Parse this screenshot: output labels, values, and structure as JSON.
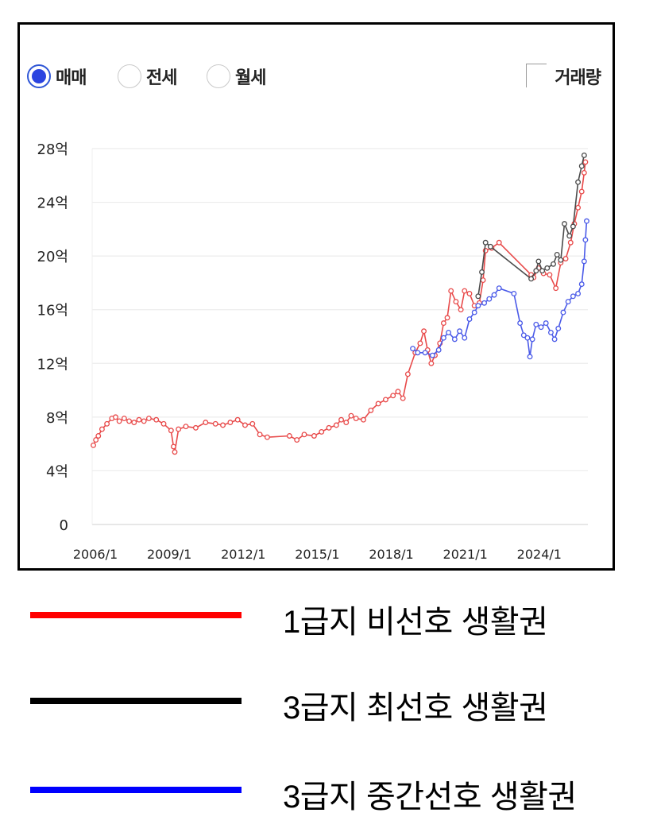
{
  "controls": {
    "radios": [
      {
        "label": "매매",
        "selected": true
      },
      {
        "label": "전세",
        "selected": false
      },
      {
        "label": "월세",
        "selected": false
      }
    ],
    "volume_checkbox": {
      "label": "거래량",
      "checked": false
    }
  },
  "legend": [
    {
      "label": "1급지 비선호 생활권",
      "color": "#ff0000"
    },
    {
      "label": "3급지 최선호 생활권",
      "color": "#000000"
    },
    {
      "label": "3급지 중간선호 생활권",
      "color": "#0000ff"
    }
  ],
  "chart_data": {
    "type": "line",
    "x_unit": "year",
    "xlim": [
      2006.0,
      2026.1
    ],
    "ylim": [
      0,
      28
    ],
    "y_ticks": [
      0,
      4,
      8,
      12,
      16,
      20,
      24,
      28
    ],
    "y_tick_labels": [
      "0",
      "4억",
      "8억",
      "12억",
      "16억",
      "20억",
      "24억",
      "28억"
    ],
    "x_ticks": [
      2006,
      2009,
      2012,
      2015,
      2018,
      2021,
      2024
    ],
    "x_tick_labels": [
      "2006/1",
      "2009/1",
      "2012/1",
      "2015/1",
      "2018/1",
      "2021/1",
      "2024/1"
    ],
    "grid": "horizontal",
    "series": [
      {
        "color": "#e84a4a",
        "points": [
          [
            2006.05,
            5.9
          ],
          [
            2006.15,
            6.3
          ],
          [
            2006.25,
            6.6
          ],
          [
            2006.4,
            7.1
          ],
          [
            2006.6,
            7.5
          ],
          [
            2006.8,
            7.9
          ],
          [
            2006.95,
            8.0
          ],
          [
            2007.1,
            7.7
          ],
          [
            2007.3,
            7.9
          ],
          [
            2007.5,
            7.7
          ],
          [
            2007.7,
            7.6
          ],
          [
            2007.9,
            7.8
          ],
          [
            2008.1,
            7.7
          ],
          [
            2008.3,
            7.9
          ],
          [
            2008.6,
            7.8
          ],
          [
            2008.9,
            7.5
          ],
          [
            2009.2,
            7.0
          ],
          [
            2009.3,
            5.8
          ],
          [
            2009.35,
            5.4
          ],
          [
            2009.5,
            7.1
          ],
          [
            2009.8,
            7.3
          ],
          [
            2010.2,
            7.2
          ],
          [
            2010.6,
            7.6
          ],
          [
            2011.0,
            7.5
          ],
          [
            2011.3,
            7.4
          ],
          [
            2011.6,
            7.6
          ],
          [
            2011.9,
            7.8
          ],
          [
            2012.2,
            7.4
          ],
          [
            2012.5,
            7.5
          ],
          [
            2012.8,
            6.7
          ],
          [
            2013.1,
            6.5
          ],
          [
            2014.0,
            6.6
          ],
          [
            2014.3,
            6.3
          ],
          [
            2014.6,
            6.7
          ],
          [
            2015.0,
            6.6
          ],
          [
            2015.3,
            6.9
          ],
          [
            2015.6,
            7.2
          ],
          [
            2015.9,
            7.4
          ],
          [
            2016.1,
            7.8
          ],
          [
            2016.3,
            7.6
          ],
          [
            2016.5,
            8.1
          ],
          [
            2016.7,
            7.9
          ],
          [
            2017.0,
            7.8
          ],
          [
            2017.3,
            8.5
          ],
          [
            2017.6,
            9.0
          ],
          [
            2017.9,
            9.3
          ],
          [
            2018.2,
            9.6
          ],
          [
            2018.4,
            9.9
          ],
          [
            2018.6,
            9.4
          ],
          [
            2018.8,
            11.2
          ],
          [
            2019.1,
            12.8
          ],
          [
            2019.3,
            13.5
          ],
          [
            2019.45,
            14.4
          ],
          [
            2019.6,
            13.0
          ],
          [
            2019.75,
            12.0
          ],
          [
            2019.9,
            12.6
          ],
          [
            2020.1,
            13.5
          ],
          [
            2020.25,
            15.0
          ],
          [
            2020.4,
            15.4
          ],
          [
            2020.55,
            17.4
          ],
          [
            2020.75,
            16.6
          ],
          [
            2020.95,
            16.0
          ],
          [
            2021.1,
            17.4
          ],
          [
            2021.3,
            17.2
          ],
          [
            2021.5,
            16.3
          ],
          [
            2021.7,
            16.5
          ],
          [
            2021.85,
            18.2
          ],
          [
            2021.95,
            20.4
          ],
          [
            2022.2,
            20.6
          ],
          [
            2022.5,
            21.0
          ],
          [
            2023.8,
            18.6
          ],
          [
            2023.9,
            18.4
          ],
          [
            2024.1,
            19.1
          ],
          [
            2024.3,
            18.7
          ],
          [
            2024.55,
            18.6
          ],
          [
            2024.8,
            17.6
          ],
          [
            2025.0,
            19.5
          ],
          [
            2025.2,
            19.8
          ],
          [
            2025.4,
            21.0
          ],
          [
            2025.55,
            22.4
          ],
          [
            2025.7,
            23.6
          ],
          [
            2025.85,
            24.8
          ],
          [
            2025.95,
            26.2
          ],
          [
            2026.0,
            27.0
          ]
        ]
      },
      {
        "color": "#4a4a4a",
        "points": [
          [
            2021.65,
            17.0
          ],
          [
            2021.8,
            18.8
          ],
          [
            2021.95,
            21.0
          ],
          [
            2022.15,
            20.7
          ],
          [
            2023.8,
            18.3
          ],
          [
            2024.0,
            18.9
          ],
          [
            2024.1,
            19.6
          ],
          [
            2024.25,
            18.9
          ],
          [
            2024.45,
            19.1
          ],
          [
            2024.7,
            19.4
          ],
          [
            2024.85,
            20.1
          ],
          [
            2025.0,
            19.7
          ],
          [
            2025.15,
            22.4
          ],
          [
            2025.35,
            21.5
          ],
          [
            2025.5,
            22.2
          ],
          [
            2025.7,
            25.5
          ],
          [
            2025.85,
            26.7
          ],
          [
            2025.95,
            27.5
          ]
        ]
      },
      {
        "color": "#4a5ae8",
        "points": [
          [
            2019.0,
            13.1
          ],
          [
            2019.2,
            12.8
          ],
          [
            2019.5,
            12.8
          ],
          [
            2019.8,
            12.6
          ],
          [
            2020.05,
            13.0
          ],
          [
            2020.25,
            13.9
          ],
          [
            2020.45,
            14.3
          ],
          [
            2020.7,
            13.8
          ],
          [
            2020.9,
            14.4
          ],
          [
            2021.1,
            13.9
          ],
          [
            2021.3,
            15.3
          ],
          [
            2021.5,
            15.8
          ],
          [
            2021.65,
            16.3
          ],
          [
            2021.9,
            16.5
          ],
          [
            2022.1,
            16.8
          ],
          [
            2022.3,
            17.1
          ],
          [
            2022.5,
            17.6
          ],
          [
            2023.1,
            17.2
          ],
          [
            2023.35,
            15.0
          ],
          [
            2023.5,
            14.1
          ],
          [
            2023.65,
            13.9
          ],
          [
            2023.75,
            12.5
          ],
          [
            2023.85,
            13.8
          ],
          [
            2024.0,
            14.9
          ],
          [
            2024.2,
            14.7
          ],
          [
            2024.4,
            15.0
          ],
          [
            2024.6,
            14.3
          ],
          [
            2024.75,
            13.8
          ],
          [
            2024.9,
            14.6
          ],
          [
            2025.1,
            15.8
          ],
          [
            2025.3,
            16.6
          ],
          [
            2025.5,
            17.0
          ],
          [
            2025.7,
            17.2
          ],
          [
            2025.85,
            17.9
          ],
          [
            2025.95,
            19.6
          ],
          [
            2026.0,
            21.2
          ],
          [
            2026.05,
            22.6
          ]
        ]
      }
    ]
  }
}
